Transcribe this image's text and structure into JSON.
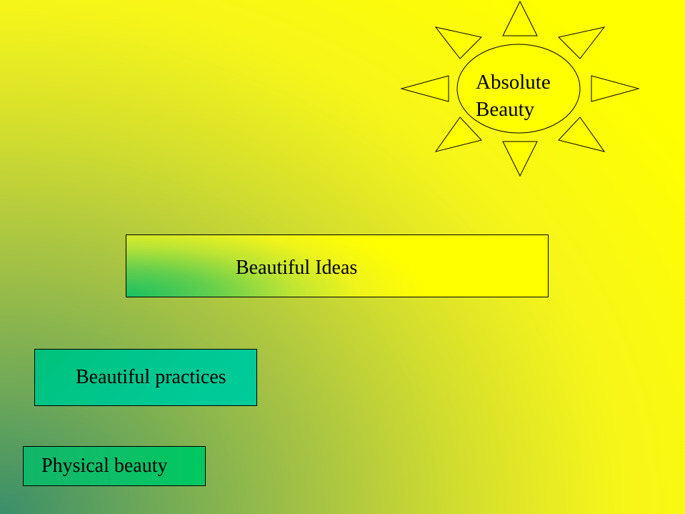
{
  "slide": {
    "background_colors": [
      "#3a8f6a",
      "#a5c244",
      "#ffff00"
    ],
    "sun": {
      "label_lines": [
        "Absolute",
        "Beauty"
      ],
      "fill_color": "#ffff00",
      "outline_color": "#000000"
    },
    "levels": [
      {
        "label": "Beautiful Ideas",
        "fill_colors": [
          "#18c062",
          "#ffff00"
        ]
      },
      {
        "label": "Beautiful practices",
        "fill_color": "#00c894"
      },
      {
        "label": "Physical beauty",
        "fill_color": "#0dbf68"
      }
    ]
  }
}
